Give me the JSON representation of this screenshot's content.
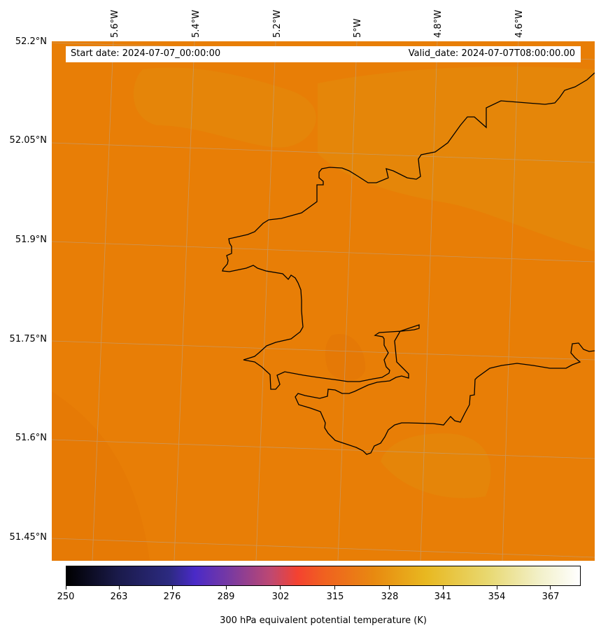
{
  "map": {
    "lon_labels": [
      "5.6°W",
      "5.4°W",
      "5.2°W",
      "5°W",
      "4.8°W",
      "4.6°W"
    ],
    "lat_labels": [
      "52.2°N",
      "52.05°N",
      "51.9°N",
      "51.75°N",
      "51.6°N",
      "51.45°N"
    ],
    "start_date": "Start date: 2024-07-07_00:00:00",
    "valid_date": "Valid_date: 2024-07-07T08:00:00.00",
    "field_color": "#e87e06",
    "land_color": "#e4870a",
    "coastline_color": "#000000",
    "gridline_color": "#b0b0b0"
  },
  "colorbar": {
    "title": "300 hPa equivalent potential temperature (K)",
    "ticks": [
      "250",
      "263",
      "276",
      "289",
      "302",
      "315",
      "328",
      "341",
      "354",
      "367"
    ],
    "range": [
      250,
      376
    ],
    "colormap": "CMRmap-like"
  }
}
